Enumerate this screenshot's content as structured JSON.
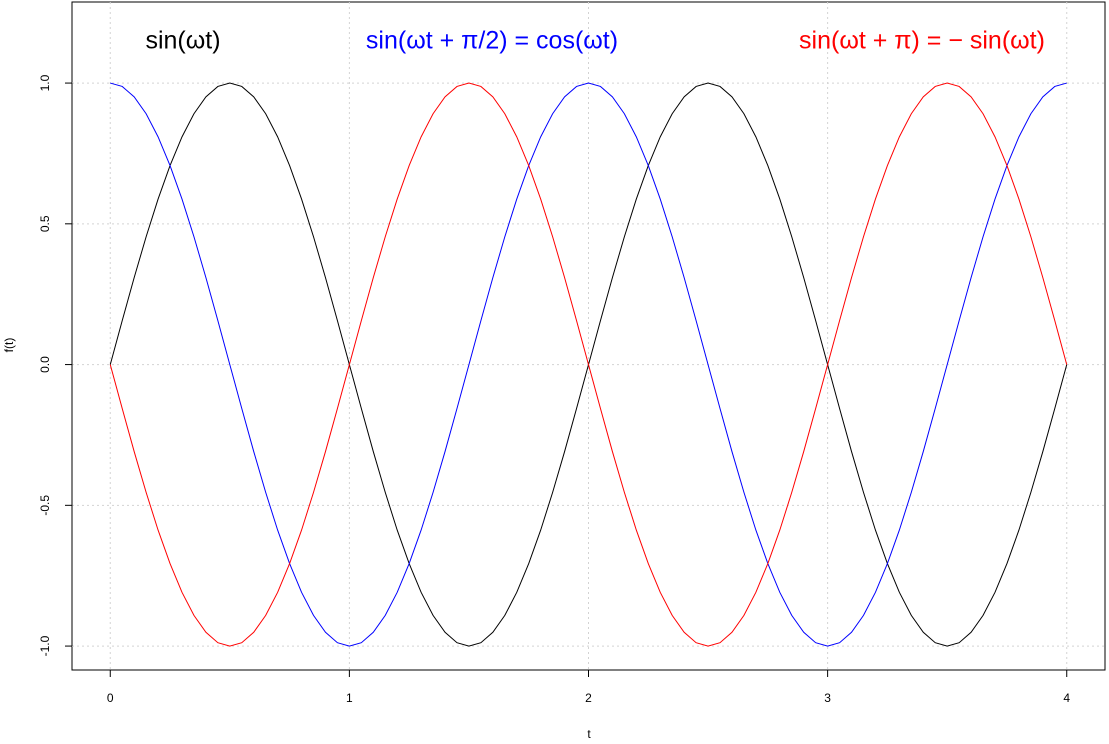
{
  "chart_data": {
    "type": "line",
    "x_label": "t",
    "y_label": "f(t)",
    "x": [
      0,
      0.05,
      0.1,
      0.15,
      0.2,
      0.25,
      0.3,
      0.35,
      0.4,
      0.45,
      0.5,
      0.55,
      0.6,
      0.65,
      0.7,
      0.75,
      0.8,
      0.85,
      0.9,
      0.95,
      1,
      1.05,
      1.1,
      1.15,
      1.2,
      1.25,
      1.3,
      1.35,
      1.4,
      1.45,
      1.5,
      1.55,
      1.6,
      1.65,
      1.7,
      1.75,
      1.8,
      1.85,
      1.9,
      1.95,
      2,
      2.05,
      2.1,
      2.15,
      2.2,
      2.25,
      2.3,
      2.35,
      2.4,
      2.45,
      2.5,
      2.55,
      2.6,
      2.65,
      2.7,
      2.75,
      2.8,
      2.85,
      2.9,
      2.95,
      3,
      3.05,
      3.1,
      3.15,
      3.2,
      3.25,
      3.3,
      3.35,
      3.4,
      3.45,
      3.5,
      3.55,
      3.6,
      3.65,
      3.7,
      3.75,
      3.8,
      3.85,
      3.9,
      3.95,
      4
    ],
    "series": [
      {
        "name": "sin(ωt)",
        "color": "#000000",
        "values": [
          0,
          0.156,
          0.309,
          0.454,
          0.588,
          0.707,
          0.809,
          0.891,
          0.951,
          0.988,
          1,
          0.988,
          0.951,
          0.891,
          0.809,
          0.707,
          0.588,
          0.454,
          0.309,
          0.156,
          0,
          -0.156,
          -0.309,
          -0.454,
          -0.588,
          -0.707,
          -0.809,
          -0.891,
          -0.951,
          -0.988,
          -1,
          -0.988,
          -0.951,
          -0.891,
          -0.809,
          -0.707,
          -0.588,
          -0.454,
          -0.309,
          -0.156,
          0,
          0.156,
          0.309,
          0.454,
          0.588,
          0.707,
          0.809,
          0.891,
          0.951,
          0.988,
          1,
          0.988,
          0.951,
          0.891,
          0.809,
          0.707,
          0.588,
          0.454,
          0.309,
          0.156,
          0,
          -0.156,
          -0.309,
          -0.454,
          -0.588,
          -0.707,
          -0.809,
          -0.891,
          -0.951,
          -0.988,
          -1,
          -0.988,
          -0.951,
          -0.891,
          -0.809,
          -0.707,
          -0.588,
          -0.454,
          -0.309,
          -0.156,
          0
        ]
      },
      {
        "name": "sin(ωt + π/2) = cos(ωt)",
        "color": "#0000ff",
        "values": [
          1,
          0.988,
          0.951,
          0.891,
          0.809,
          0.707,
          0.588,
          0.454,
          0.309,
          0.156,
          0,
          -0.156,
          -0.309,
          -0.454,
          -0.588,
          -0.707,
          -0.809,
          -0.891,
          -0.951,
          -0.988,
          -1,
          -0.988,
          -0.951,
          -0.891,
          -0.809,
          -0.707,
          -0.588,
          -0.454,
          -0.309,
          -0.156,
          0,
          0.156,
          0.309,
          0.454,
          0.588,
          0.707,
          0.809,
          0.891,
          0.951,
          0.988,
          1,
          0.988,
          0.951,
          0.891,
          0.809,
          0.707,
          0.588,
          0.454,
          0.309,
          0.156,
          0,
          -0.156,
          -0.309,
          -0.454,
          -0.588,
          -0.707,
          -0.809,
          -0.891,
          -0.951,
          -0.988,
          -1,
          -0.988,
          -0.951,
          -0.891,
          -0.809,
          -0.707,
          -0.588,
          -0.454,
          -0.309,
          -0.156,
          0,
          0.156,
          0.309,
          0.454,
          0.588,
          0.707,
          0.809,
          0.891,
          0.951,
          0.988,
          1
        ]
      },
      {
        "name": "sin(ωt + π) = − sin(ωt)",
        "color": "#ff0000",
        "values": [
          0,
          -0.156,
          -0.309,
          -0.454,
          -0.588,
          -0.707,
          -0.809,
          -0.891,
          -0.951,
          -0.988,
          -1,
          -0.988,
          -0.951,
          -0.891,
          -0.809,
          -0.707,
          -0.588,
          -0.454,
          -0.309,
          -0.156,
          0,
          0.156,
          0.309,
          0.454,
          0.588,
          0.707,
          0.809,
          0.891,
          0.951,
          0.988,
          1,
          0.988,
          0.951,
          0.891,
          0.809,
          0.707,
          0.588,
          0.454,
          0.309,
          0.156,
          0,
          -0.156,
          -0.309,
          -0.454,
          -0.588,
          -0.707,
          -0.809,
          -0.891,
          -0.951,
          -0.988,
          -1,
          -0.988,
          -0.951,
          -0.891,
          -0.809,
          -0.707,
          -0.588,
          -0.454,
          -0.309,
          -0.156,
          0,
          0.156,
          0.309,
          0.454,
          0.588,
          0.707,
          0.809,
          0.891,
          0.951,
          0.988,
          1,
          0.988,
          0.951,
          0.891,
          0.809,
          0.707,
          0.588,
          0.454,
          0.309,
          0.156,
          0
        ]
      }
    ],
    "xlim": [
      -0.16,
      4.16
    ],
    "ylim": [
      -1.085,
      1.288
    ],
    "xticks": [
      0,
      1,
      2,
      3,
      4
    ],
    "yticks": [
      {
        "value": -1,
        "label": "-1.0"
      },
      {
        "value": -0.5,
        "label": "-0.5"
      },
      {
        "value": 0,
        "label": "0.0"
      },
      {
        "value": 0.5,
        "label": "0.5"
      },
      {
        "value": 1,
        "label": "1.0"
      }
    ],
    "grid": true
  }
}
